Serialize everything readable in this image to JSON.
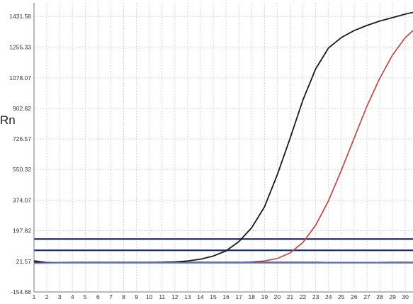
{
  "chart_data": {
    "type": "line",
    "title": "",
    "xlabel": "",
    "ylabel": "Rn",
    "x_ticks": [
      1,
      2,
      3,
      4,
      5,
      6,
      7,
      8,
      9,
      10,
      11,
      12,
      13,
      14,
      15,
      16,
      17,
      18,
      19,
      20,
      21,
      22,
      23,
      24,
      25,
      26,
      27,
      28,
      29,
      30
    ],
    "x_tick_labels": [
      "1",
      "2",
      "3",
      "4",
      "5",
      "6",
      "7",
      "8",
      "9",
      "10",
      "11",
      "12",
      "13",
      "14",
      "15",
      "16",
      "17",
      "18",
      "19",
      "20",
      "21",
      "22",
      "23",
      "24",
      "25",
      "26",
      "27",
      "28",
      "29",
      "30"
    ],
    "y_ticks": [
      -154.68,
      21.57,
      197.82,
      374.07,
      550.32,
      726.57,
      902.82,
      1078.07,
      1255.33,
      1431.58
    ],
    "y_tick_labels": [
      "-154.68",
      "21.57",
      "197.82",
      "374.07",
      "550.32",
      "726.57",
      "902.82",
      "1078.07",
      "1255.33",
      "1431.58"
    ],
    "xlim": [
      1,
      30.6
    ],
    "ylim": [
      -154.68,
      1510
    ],
    "grid": true,
    "series": [
      {
        "color": "#1a1a1a",
        "x": [
          1,
          2,
          3,
          4,
          5,
          6,
          7,
          8,
          9,
          10,
          11,
          12,
          13,
          14,
          15,
          16,
          17,
          18,
          19,
          20,
          21,
          22,
          23,
          24,
          25,
          26,
          27,
          28,
          29,
          30,
          30.6
        ],
        "y": [
          25,
          14,
          12,
          13,
          13,
          14,
          14,
          14,
          14,
          15,
          16,
          18,
          24,
          34,
          52,
          82,
          135,
          215,
          335,
          520,
          730,
          950,
          1130,
          1250,
          1310,
          1350,
          1380,
          1405,
          1425,
          1445,
          1455
        ]
      },
      {
        "color": "#c0504d",
        "x": [
          1,
          2,
          3,
          4,
          5,
          6,
          7,
          8,
          9,
          10,
          11,
          12,
          13,
          14,
          15,
          16,
          17,
          18,
          19,
          20,
          21,
          22,
          23,
          24,
          25,
          26,
          27,
          28,
          29,
          30,
          30.6
        ],
        "y": [
          15,
          13,
          12,
          12,
          12,
          12,
          12,
          12,
          12,
          12,
          12,
          12,
          12,
          12,
          12,
          13,
          14,
          17,
          24,
          38,
          70,
          130,
          230,
          370,
          545,
          730,
          915,
          1075,
          1210,
          1310,
          1350
        ]
      },
      {
        "color": "#1f2a44",
        "x": [
          1,
          2,
          3,
          4,
          5,
          6,
          7,
          8,
          9,
          10,
          11,
          12,
          13,
          14,
          15,
          16,
          17,
          18,
          19,
          20,
          21,
          22,
          23,
          24,
          25,
          26,
          27,
          28,
          29,
          30,
          30.6
        ],
        "y": [
          18,
          14,
          14,
          15,
          15,
          15,
          15,
          15,
          15,
          15,
          15,
          15,
          15,
          15,
          15,
          15,
          15,
          15,
          15,
          15,
          15,
          15,
          15,
          14,
          14,
          14,
          14,
          14,
          15,
          15,
          15
        ]
      },
      {
        "color": "#7a86d6",
        "x": [
          1,
          2,
          3,
          4,
          5,
          6,
          7,
          8,
          9,
          10,
          11,
          12,
          13,
          14,
          15,
          16,
          17,
          18,
          19,
          20,
          21,
          22,
          23,
          24,
          25,
          26,
          27,
          28,
          29,
          30,
          30.6
        ],
        "y": [
          10,
          11,
          12,
          12,
          12,
          12,
          12,
          12,
          12,
          12,
          12,
          12,
          12,
          12,
          12,
          12,
          12,
          12,
          12,
          12,
          12,
          12,
          12,
          12,
          12,
          12,
          12,
          12,
          12,
          12,
          12
        ]
      }
    ],
    "thresholds": [
      {
        "value": 150,
        "color": "#191c4a"
      },
      {
        "value": 85,
        "color": "#25306a"
      }
    ]
  }
}
